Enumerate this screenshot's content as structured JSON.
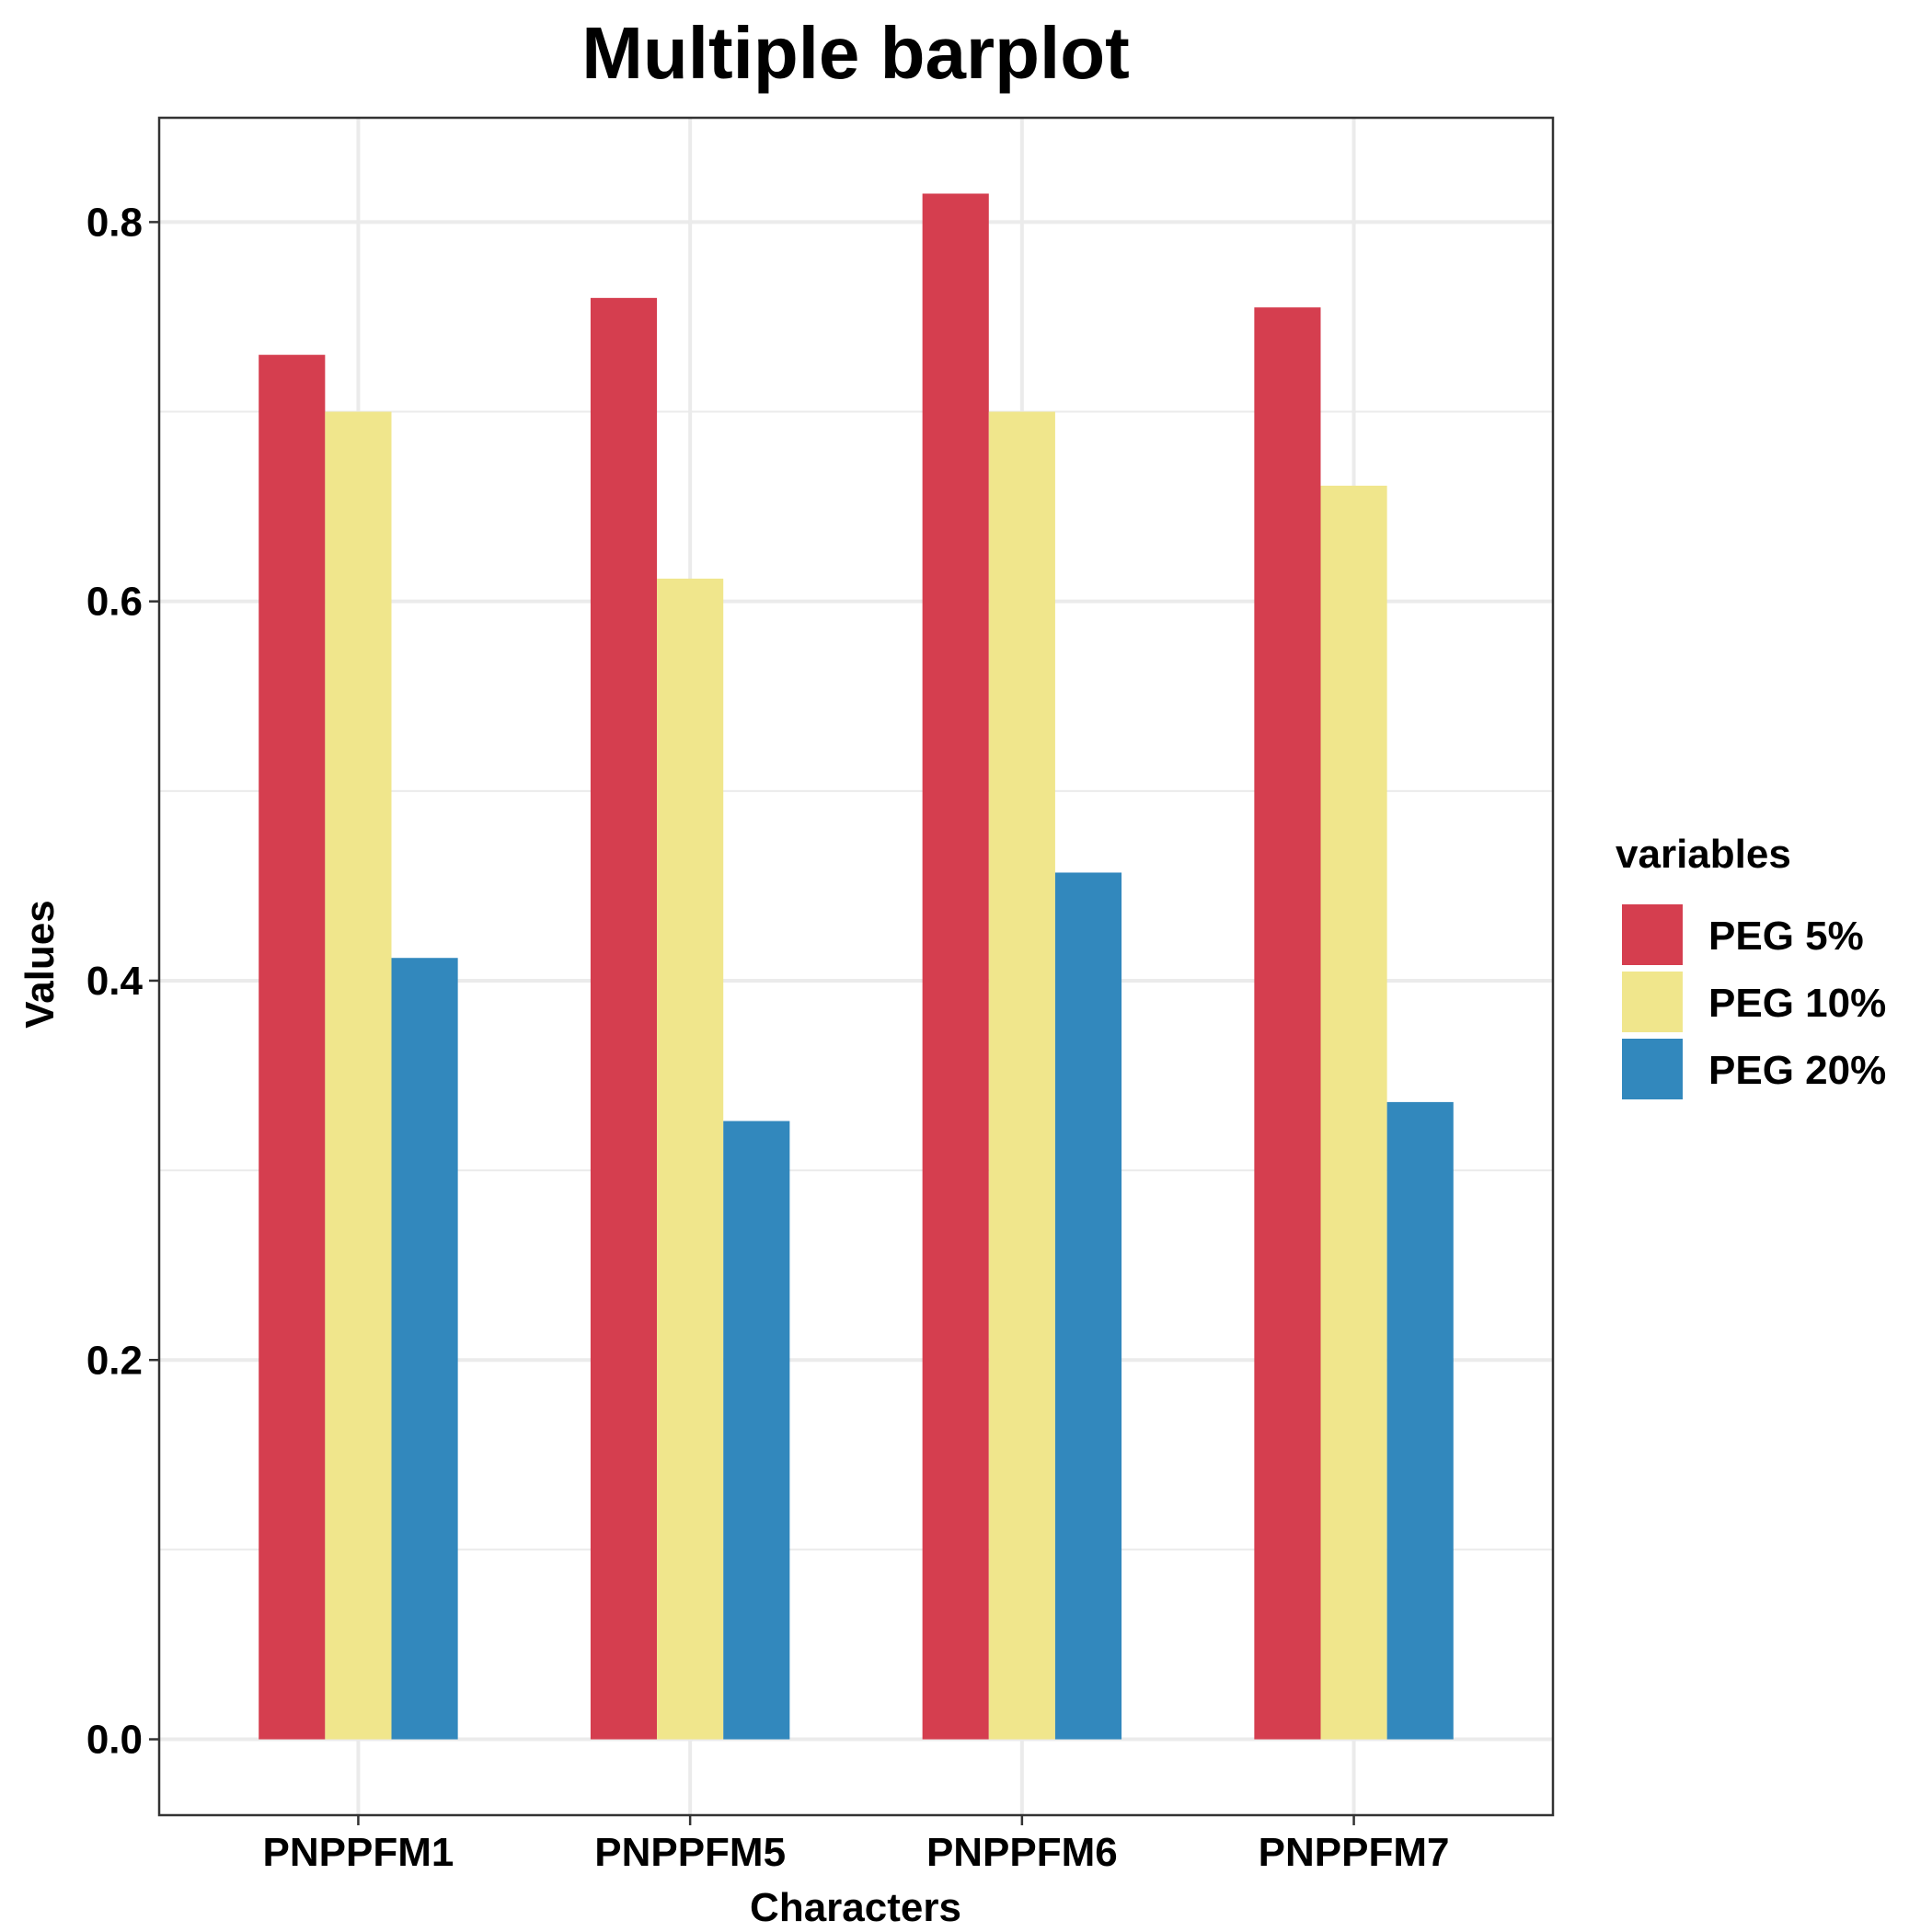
{
  "chart_data": {
    "type": "bar",
    "title": "Multiple barplot",
    "xlabel": "Characters",
    "ylabel": "Values",
    "categories": [
      "PNPPFM1",
      "PNPPFM5",
      "PNPPFM6",
      "PNPPFM7"
    ],
    "series": [
      {
        "name": "PEG 5%",
        "color": "#d53e4f",
        "values": [
          0.73,
          0.76,
          0.815,
          0.755
        ]
      },
      {
        "name": "PEG 10%",
        "color": "#f0e68c",
        "values": [
          0.7,
          0.612,
          0.7,
          0.661
        ]
      },
      {
        "name": "PEG 20%",
        "color": "#3288bd",
        "values": [
          0.412,
          0.326,
          0.457,
          0.336
        ]
      }
    ],
    "ylim": [
      -0.04,
      0.855
    ],
    "yticks": [
      0.0,
      0.2,
      0.4,
      0.6,
      0.8
    ],
    "ytick_labels": [
      "0.0",
      "0.2",
      "0.4",
      "0.6",
      "0.8"
    ],
    "grid": true,
    "legend": {
      "title": "variables",
      "position": "right"
    }
  }
}
